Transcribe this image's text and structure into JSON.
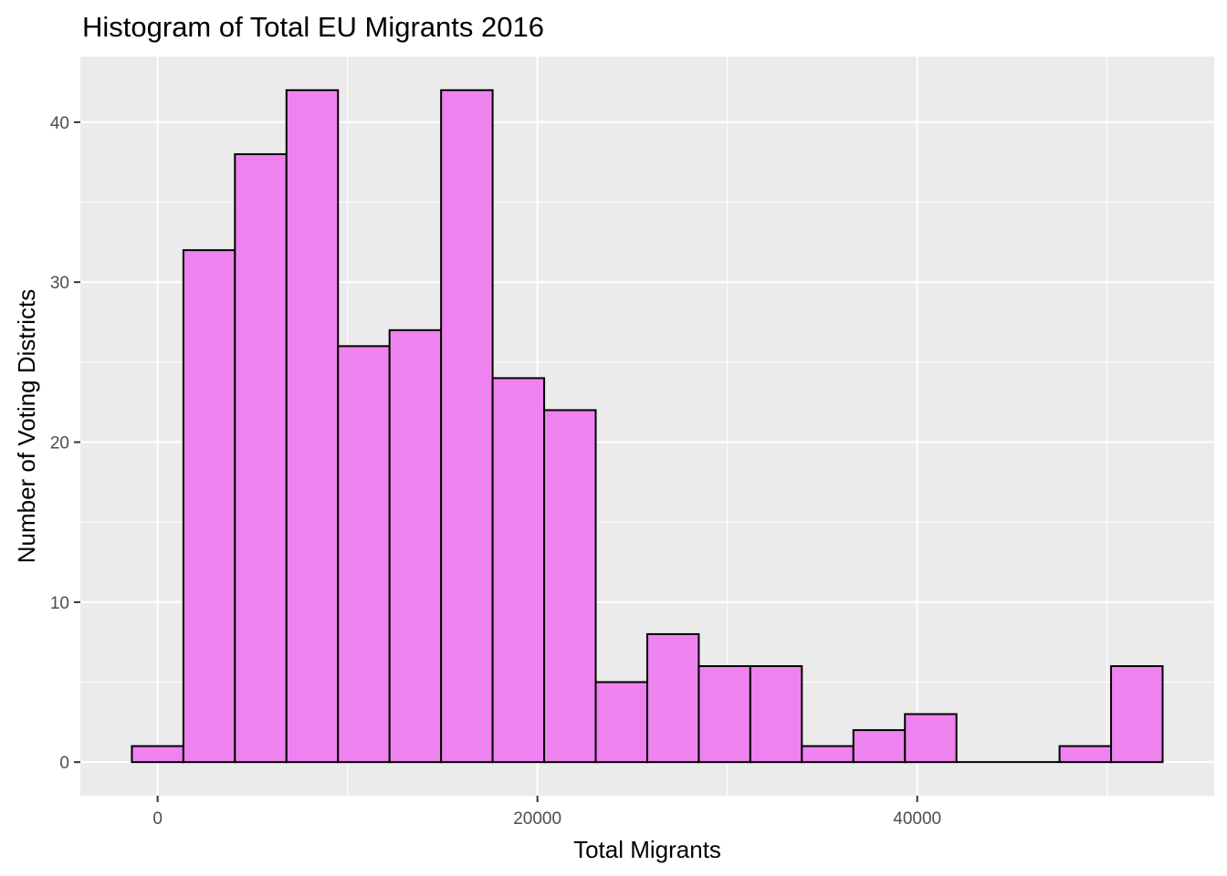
{
  "chart_data": {
    "type": "bar",
    "title": "Histogram of Total EU Migrants 2016",
    "xlabel": "Total Migrants",
    "ylabel": "Number of Voting Districts",
    "bin_width": 2714,
    "bins": [
      {
        "start": -1357,
        "end": 1357,
        "count": 1
      },
      {
        "start": 1357,
        "end": 4071,
        "count": 32
      },
      {
        "start": 4071,
        "end": 6785,
        "count": 38
      },
      {
        "start": 6785,
        "end": 9499,
        "count": 42
      },
      {
        "start": 9499,
        "end": 12213,
        "count": 26
      },
      {
        "start": 12213,
        "end": 14927,
        "count": 27
      },
      {
        "start": 14927,
        "end": 17641,
        "count": 42
      },
      {
        "start": 17641,
        "end": 20355,
        "count": 24
      },
      {
        "start": 20355,
        "end": 23069,
        "count": 22
      },
      {
        "start": 23069,
        "end": 25783,
        "count": 5
      },
      {
        "start": 25783,
        "end": 28497,
        "count": 8
      },
      {
        "start": 28497,
        "end": 31211,
        "count": 6
      },
      {
        "start": 31211,
        "end": 33925,
        "count": 6
      },
      {
        "start": 33925,
        "end": 36639,
        "count": 1
      },
      {
        "start": 36639,
        "end": 39353,
        "count": 2
      },
      {
        "start": 39353,
        "end": 42067,
        "count": 3
      },
      {
        "start": 42067,
        "end": 44781,
        "count": 0
      },
      {
        "start": 44781,
        "end": 47495,
        "count": 0
      },
      {
        "start": 47495,
        "end": 50209,
        "count": 1
      },
      {
        "start": 50209,
        "end": 52923,
        "count": 6
      }
    ],
    "xlim": [
      -4070,
      55640
    ],
    "ylim": [
      -2.1,
      44.1
    ],
    "x_ticks": [
      0,
      20000,
      40000
    ],
    "x_tick_labels": [
      "0",
      "20000",
      "40000"
    ],
    "y_ticks": [
      0,
      10,
      20,
      30,
      40
    ],
    "y_tick_labels": [
      "0",
      "10",
      "20",
      "30",
      "40"
    ],
    "grid": true,
    "bar_fill": "#ee82ee",
    "bar_outline": "#000000",
    "panel_background": "#ebebeb"
  }
}
